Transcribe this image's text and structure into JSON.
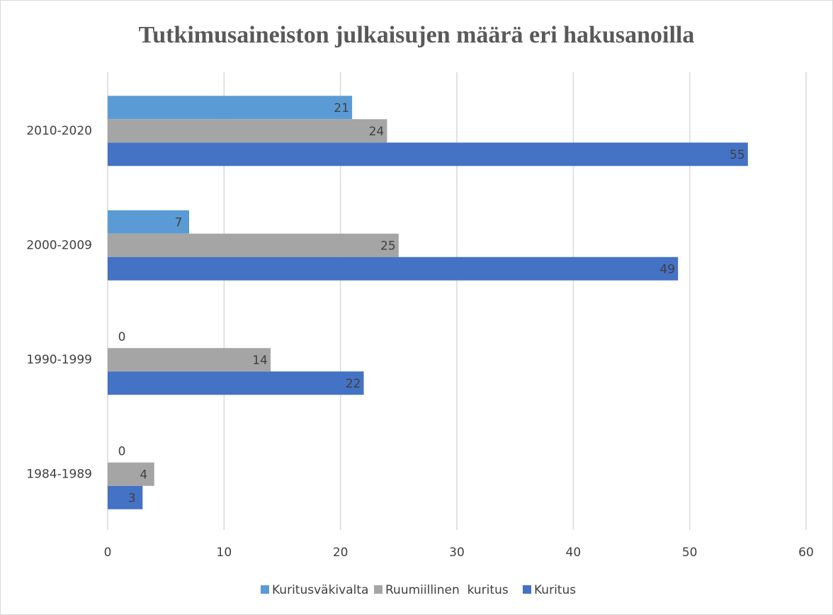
{
  "chart_data": {
    "type": "barh",
    "title": "Tutkimusaineiston julkaisujen määrä eri hakusanoilla",
    "categories": [
      "2010-2020",
      "2000-2009",
      "1990-1999",
      "1984-1989"
    ],
    "series": [
      {
        "name": "Kuritusväkivalta",
        "color": "#5b9bd5",
        "values": [
          21,
          7,
          0,
          0
        ]
      },
      {
        "name": "Ruumiillinen  kuritus",
        "color": "#a5a5a5",
        "values": [
          24,
          25,
          14,
          4
        ]
      },
      {
        "name": "Kuritus",
        "color": "#4472c4",
        "values": [
          55,
          49,
          22,
          3
        ]
      }
    ],
    "xlim": [
      0,
      60
    ],
    "xticks": [
      0,
      10,
      20,
      30,
      40,
      50,
      60
    ],
    "grid": true,
    "legend": "bottom"
  }
}
